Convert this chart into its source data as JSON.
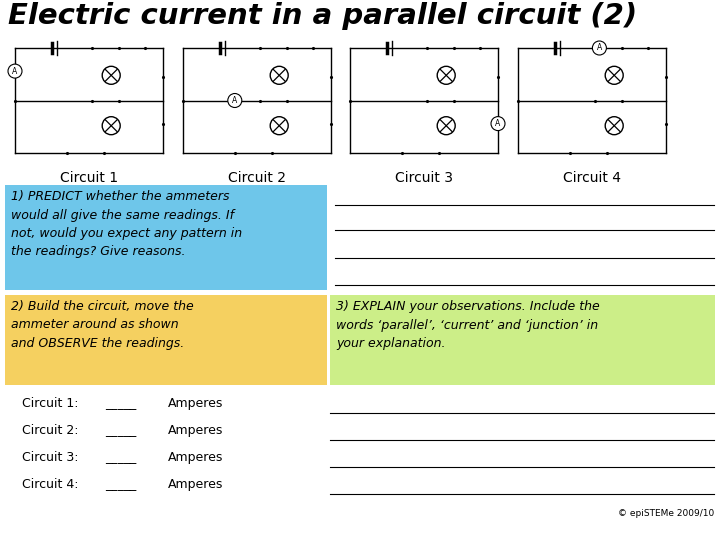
{
  "title": "Electric current in a parallel circuit (2)",
  "background_color": "#ffffff",
  "circuit_labels": [
    "Circuit 1",
    "Circuit 2",
    "Circuit 3",
    "Circuit 4"
  ],
  "section1_bg": "#6EC6EA",
  "section2_bg": "#F5D060",
  "section3_bg": "#CCEE88",
  "section1_text": "1) PREDICT whether the ammeters\nwould all give the same readings. If\nnot, would you expect any pattern in\nthe readings? Give reasons.",
  "section2_text": "2) Build the circuit, move the\nammeter around as shown\nand OBSERVE the readings.",
  "section3_text": "3) EXPLAIN your observations. Include the\nwords ‘parallel’, ‘current’ and ‘junction’ in\nyour explanation.",
  "circuit_entries": [
    "Circuit 1:",
    "Circuit 2:",
    "Circuit 3:",
    "Circuit 4:"
  ],
  "amperes_label": "Amperes",
  "copyright": "© epiSTEMe 2009/10",
  "title_fontsize": 21,
  "circuit_label_fontsize": 10,
  "body_fontsize": 9,
  "small_fontsize": 9,
  "circuits": [
    {
      "ammeter": "left_main"
    },
    {
      "ammeter": "upper_branch_left"
    },
    {
      "ammeter": "lower_branch_right"
    },
    {
      "ammeter": "top_main_right"
    }
  ]
}
